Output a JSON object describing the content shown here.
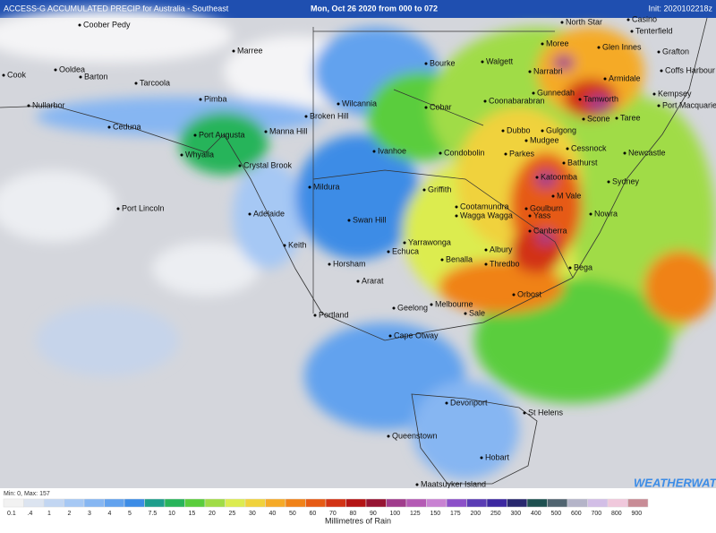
{
  "header": {
    "title": "ACCESS-G ACCUMULATED PRECIP for Australia - Southeast",
    "run": "Mon, Oct 26 2020 from 000 to 072",
    "init": "Init: 2020102218z"
  },
  "places": [
    "Coober Pedy",
    "Marree",
    "Cook",
    "Ooldea",
    "Barton",
    "Tarcoola",
    "Nullarbor",
    "Pimba",
    "Ceduna",
    "Port Augusta",
    "Whyalla",
    "Crystal Brook",
    "Manna Hill",
    "Wilcannia",
    "Broken Hill",
    "Bourke",
    "Cobar",
    "Walgett",
    "Moree",
    "North Star",
    "Casino",
    "Tenterfield",
    "Glen Innes",
    "Grafton",
    "Coffs Harbour",
    "Narrabri",
    "Armidale",
    "Gunnedah",
    "Tamworth",
    "Kempsey",
    "Port Macquarie",
    "Coonabarabran",
    "Scone",
    "Taree",
    "Dubbo",
    "Gulgong",
    "Mudgee",
    "Cessnock",
    "Newcastle",
    "Condobolin",
    "Parkes",
    "Bathurst",
    "Ivanhoe",
    "Katoomba",
    "Sydney",
    "Mildura",
    "Griffith",
    "M Vale",
    "Cootamundra",
    "Goulburn",
    "Yass",
    "Wagga Wagga",
    "Nowra",
    "Swan Hill",
    "Port Lincoln",
    "Adelaide",
    "Canberra",
    "Yarrawonga",
    "Keith",
    "Echuca",
    "Albury",
    "Benalla",
    "Horsham",
    "Thredbo",
    "Bega",
    "Ararat",
    "Orbost",
    "Melbourne",
    "Geelong",
    "Sale",
    "Portland",
    "Cape Otway",
    "Devonport",
    "St Helens",
    "Queenstown",
    "Hobart",
    "Maatsuyker Island"
  ],
  "legend": {
    "range": "Min: 0, Max: 157",
    "units": "Millimetres of Rain",
    "labels": [
      "0.1",
      ".4",
      "1",
      "2",
      "3",
      "4",
      "5",
      "7.5",
      "10",
      "15",
      "20",
      "25",
      "30",
      "40",
      "50",
      "60",
      "70",
      "80",
      "90",
      "100",
      "125",
      "150",
      "175",
      "200",
      "250",
      "300",
      "400",
      "500",
      "600",
      "700",
      "800",
      "900"
    ],
    "colors": [
      "#f2f2f2",
      "#dce4f0",
      "#c2d6f2",
      "#a6c8f4",
      "#86b6f2",
      "#62a2ee",
      "#3c8ce6",
      "#1e9e8c",
      "#28b45a",
      "#5acd3c",
      "#a0dc46",
      "#dcec50",
      "#f0d23c",
      "#f5aa28",
      "#f08218",
      "#e65a14",
      "#d23214",
      "#b41414",
      "#961432",
      "#a03c8c",
      "#b45ab4",
      "#c882d2",
      "#8c50c8",
      "#5a3cb4",
      "#3c28a0",
      "#28286e",
      "#1e5050",
      "#506470",
      "#b4b4c8",
      "#d2bee6",
      "#f0c8dc",
      "#c88c96"
    ]
  },
  "brand": "WEATHERWATCH"
}
